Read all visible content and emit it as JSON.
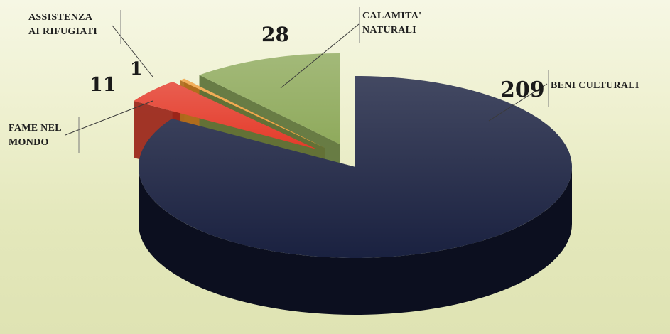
{
  "chart_data": {
    "type": "pie",
    "title": "",
    "slices": [
      {
        "label_lines": [
          "BENI CULTURALI"
        ],
        "value": 209,
        "color": "#1a2140",
        "side_color": "#0c0f1f"
      },
      {
        "label_lines": [
          "FAME NEL",
          "MONDO"
        ],
        "value": 11,
        "color": "#e43b2a",
        "side_color": "#9a2418"
      },
      {
        "label_lines": [
          "ASSISTENZA",
          "AI RIFUGIATI"
        ],
        "value": 1,
        "color": "#f0a03c",
        "side_color": "#b06c1c"
      },
      {
        "label_lines": [
          "CALAMITA'",
          "NATURALI"
        ],
        "value": 28,
        "color": "#8faa5c",
        "side_color": "#5c7238"
      }
    ],
    "value_labels": [
      "209",
      "11",
      "1",
      "28"
    ],
    "legend": "none",
    "style": "3d-exploded-pie"
  }
}
